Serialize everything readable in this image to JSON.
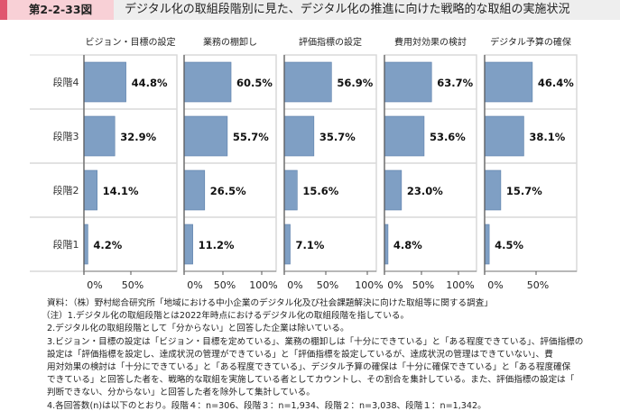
{
  "header": {
    "figure_no": "第2-2-33図",
    "title": "デジタル化の取組段階別に見た、デジタル化の推進に向けた戦略的な取組の実施状況"
  },
  "chart_data": [
    {
      "type": "bar",
      "title": "ビジョン・目標の設定",
      "categories": [
        "段階4",
        "段階3",
        "段階2",
        "段階1"
      ],
      "values": [
        44.8,
        32.9,
        14.1,
        4.2
      ],
      "labels": [
        "44.8%",
        "32.9%",
        "14.1%",
        "4.2%"
      ],
      "ticks": [
        "0%",
        "50%"
      ],
      "xlim": [
        0,
        100
      ]
    },
    {
      "type": "bar",
      "title": "業務の棚卸し",
      "categories": [
        "段階4",
        "段階3",
        "段階2",
        "段階1"
      ],
      "values": [
        60.5,
        55.7,
        26.5,
        11.2
      ],
      "labels": [
        "60.5%",
        "55.7%",
        "26.5%",
        "11.2%"
      ],
      "ticks": [
        "0%",
        "50%",
        "100%"
      ],
      "xlim": [
        0,
        100
      ]
    },
    {
      "type": "bar",
      "title": "評価指標の設定",
      "categories": [
        "段階4",
        "段階3",
        "段階2",
        "段階1"
      ],
      "values": [
        56.9,
        35.7,
        15.6,
        7.1
      ],
      "labels": [
        "56.9%",
        "35.7%",
        "15.6%",
        "7.1%"
      ],
      "ticks": [
        "0%",
        "50%",
        "100%"
      ],
      "xlim": [
        0,
        100
      ]
    },
    {
      "type": "bar",
      "title": "費用対効果の検討",
      "categories": [
        "段階4",
        "段階3",
        "段階2",
        "段階1"
      ],
      "values": [
        63.7,
        53.6,
        23.0,
        4.8
      ],
      "labels": [
        "63.7%",
        "53.6%",
        "23.0%",
        "4.8%"
      ],
      "ticks": [
        "0%",
        "50%",
        "100%"
      ],
      "xlim": [
        0,
        100
      ]
    },
    {
      "type": "bar",
      "title": "デジタル予算の確保",
      "categories": [
        "段階4",
        "段階3",
        "段階2",
        "段階1"
      ],
      "values": [
        46.4,
        38.1,
        15.7,
        4.5
      ],
      "labels": [
        "46.4%",
        "38.1%",
        "15.7%",
        "4.5%"
      ],
      "ticks": [
        "0%",
        "50%"
      ],
      "xlim": [
        0,
        100
      ]
    }
  ],
  "row_labels": [
    "段階4",
    "段階3",
    "段階2",
    "段階1"
  ],
  "colors": {
    "bar": "#7f9fc4",
    "bar_edge": "#5b7faa",
    "grid": "#d9d9d9"
  },
  "notes": [
    "資料：（株）野村総合研究所「地域における中小企業のデジタル化及び社会課題解決に向けた取組等に関する調査」",
    "（注）1.デジタル化の取組段階とは2022年時点におけるデジタル化の取組段階を指している。",
    "2.デジタル化の取組段階として「分からない」と回答した企業は除いている。",
    "3.ビジョン・目標の設定は「ビジョン・目標を定めている」、業務の棚卸しは「十分にできている」と「ある程度できている」、評価指標の",
    "設定は「評価指標を設定し、達成状況の管理ができている」と「評価指標を設定しているが、達成状況の管理はできていない」、費",
    "用対効果の検討は「十分にできている」と「ある程度できている」、デジタル予算の確保は「十分に確保できている」と「ある程度確保",
    "できている」と回答した者を、戦略的な取組を実施している者としてカウントし、その割合を集計している。また、評価指標の設定は「",
    "判断できない、分からない」と回答した者を除外して集計している。",
    "4.各回答数(n)は以下のとおり。段階４：n=306、段階３：n=1,934、段階２：n=3,038、段階１：n=1,342。"
  ]
}
